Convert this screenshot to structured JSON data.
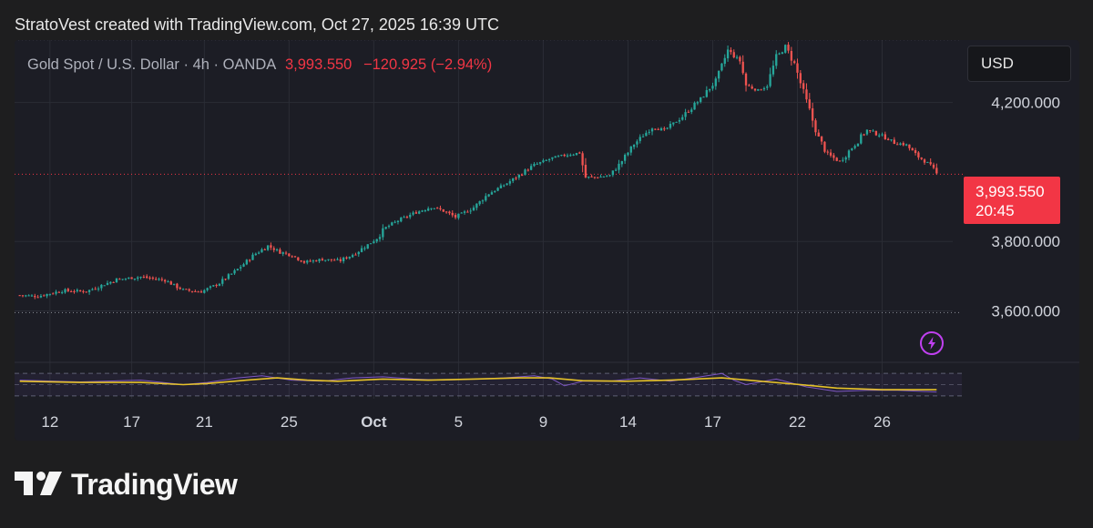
{
  "header": {
    "caption": "StratoVest created with TradingView.com, Oct 27, 2025 16:39 UTC"
  },
  "symbol": {
    "name": "Gold Spot / U.S. Dollar · 4h · OANDA",
    "price": "3,993.550",
    "change": "−120.925 (−2.94%)"
  },
  "currency_label": "USD",
  "price_tag": {
    "price": "3,993.550",
    "countdown": "20:45"
  },
  "logo": {
    "text": "TradingView"
  },
  "colors": {
    "up": "#26a69a",
    "down": "#ef5350",
    "rsi": "#7e57c2",
    "rsi_ma": "#e6c229",
    "grid": "#2a2c35",
    "axis_text": "#d1d4dc",
    "price_tag": "#f23645",
    "background": "#1c1d25"
  },
  "chart_data": [
    {
      "type": "candlestick",
      "interval": "4h",
      "y_ticks": [
        "3,600.000",
        "3,800.000",
        "4,200.000"
      ],
      "y_tick_values": [
        3600,
        3800,
        4200
      ],
      "ylim": [
        3457,
        4380
      ],
      "x_ticks": [
        "12",
        "17",
        "21",
        "25",
        "Oct",
        "5",
        "9",
        "14",
        "17",
        "22",
        "26"
      ],
      "x_tick_bold": [
        false,
        false,
        false,
        false,
        true,
        false,
        false,
        false,
        false,
        false,
        false
      ],
      "x_tick_index": [
        10,
        37,
        61,
        89,
        117,
        145,
        173,
        201,
        229,
        257,
        285
      ],
      "current_price": 3993.55,
      "high_line": 4381,
      "low_line": 3595,
      "grid": true,
      "close_path": [
        [
          0,
          3645
        ],
        [
          6,
          3642
        ],
        [
          14,
          3658
        ],
        [
          22,
          3656
        ],
        [
          32,
          3690
        ],
        [
          40,
          3698
        ],
        [
          48,
          3688
        ],
        [
          54,
          3660
        ],
        [
          60,
          3655
        ],
        [
          66,
          3680
        ],
        [
          72,
          3720
        ],
        [
          78,
          3765
        ],
        [
          82,
          3787
        ],
        [
          86,
          3770
        ],
        [
          90,
          3760
        ],
        [
          94,
          3740
        ],
        [
          100,
          3748
        ],
        [
          106,
          3745
        ],
        [
          110,
          3762
        ],
        [
          115,
          3790
        ],
        [
          118,
          3810
        ],
        [
          121,
          3840
        ],
        [
          125,
          3860
        ],
        [
          130,
          3880
        ],
        [
          136,
          3900
        ],
        [
          140,
          3888
        ],
        [
          144,
          3870
        ],
        [
          150,
          3898
        ],
        [
          155,
          3938
        ],
        [
          160,
          3962
        ],
        [
          165,
          3990
        ],
        [
          170,
          4020
        ],
        [
          176,
          4040
        ],
        [
          181,
          4050
        ],
        [
          185,
          4055
        ],
        [
          187,
          3985
        ],
        [
          191,
          3985
        ],
        [
          195,
          3990
        ],
        [
          198,
          4020
        ],
        [
          203,
          4080
        ],
        [
          209,
          4130
        ],
        [
          213,
          4120
        ],
        [
          219,
          4160
        ],
        [
          225,
          4210
        ],
        [
          230,
          4262
        ],
        [
          234,
          4350
        ],
        [
          238,
          4320
        ],
        [
          240,
          4250
        ],
        [
          244,
          4235
        ],
        [
          247,
          4250
        ],
        [
          250,
          4330
        ],
        [
          253,
          4360
        ],
        [
          256,
          4312
        ],
        [
          260,
          4200
        ],
        [
          264,
          4098
        ],
        [
          267,
          4050
        ],
        [
          271,
          4030
        ],
        [
          275,
          4070
        ],
        [
          280,
          4120
        ],
        [
          285,
          4105
        ],
        [
          289,
          4085
        ],
        [
          293,
          4078
        ],
        [
          296,
          4050
        ],
        [
          300,
          4026
        ],
        [
          303,
          3993
        ]
      ],
      "candle_count": 304
    },
    {
      "type": "line",
      "name": "RSI",
      "ylim": [
        25,
        80
      ],
      "bands": [
        30,
        50,
        70
      ],
      "series": [
        {
          "name": "rsi",
          "points": [
            [
              0,
              58
            ],
            [
              20,
              55
            ],
            [
              40,
              58
            ],
            [
              54,
              50
            ],
            [
              62,
              54
            ],
            [
              72,
              62
            ],
            [
              80,
              66
            ],
            [
              90,
              58
            ],
            [
              100,
              56
            ],
            [
              110,
              62
            ],
            [
              120,
              64
            ],
            [
              130,
              60
            ],
            [
              140,
              58
            ],
            [
              150,
              60
            ],
            [
              160,
              62
            ],
            [
              170,
              66
            ],
            [
              176,
              60
            ],
            [
              180,
              48
            ],
            [
              186,
              56
            ],
            [
              195,
              56
            ],
            [
              205,
              62
            ],
            [
              215,
              56
            ],
            [
              225,
              64
            ],
            [
              232,
              70
            ],
            [
              236,
              58
            ],
            [
              240,
              50
            ],
            [
              250,
              60
            ],
            [
              260,
              46
            ],
            [
              270,
              38
            ],
            [
              280,
              40
            ],
            [
              290,
              40
            ],
            [
              303,
              37
            ]
          ]
        },
        {
          "name": "rsi-ma",
          "points": [
            [
              0,
              56
            ],
            [
              20,
              54
            ],
            [
              40,
              54
            ],
            [
              54,
              50
            ],
            [
              62,
              52
            ],
            [
              75,
              58
            ],
            [
              85,
              62
            ],
            [
              95,
              58
            ],
            [
              105,
              56
            ],
            [
              120,
              60
            ],
            [
              135,
              58
            ],
            [
              150,
              60
            ],
            [
              165,
              62
            ],
            [
              175,
              62
            ],
            [
              186,
              57
            ],
            [
              200,
              56
            ],
            [
              215,
              58
            ],
            [
              232,
              62
            ],
            [
              245,
              56
            ],
            [
              258,
              50
            ],
            [
              270,
              44
            ],
            [
              285,
              41
            ],
            [
              303,
              41
            ]
          ]
        }
      ]
    }
  ]
}
